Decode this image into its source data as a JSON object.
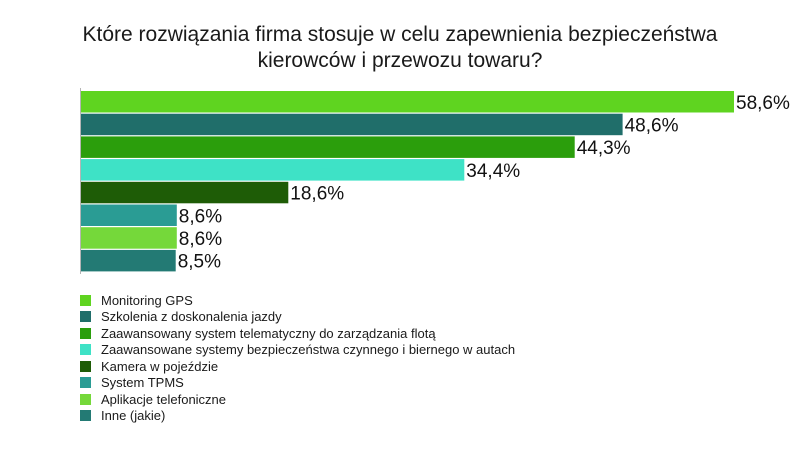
{
  "chart_data": {
    "type": "bar",
    "orientation": "horizontal",
    "title": [
      "Które rozwiązania firma stosuje w celu zapewnienia bezpieczeństwa",
      "kierowców i przewozu towaru?"
    ],
    "categories": [
      "Monitoring GPS",
      "Szkolenia z doskonalenia jazdy",
      "Zaawansowany system telematyczny do zarządzania flotą",
      "Zaawansowane systemy bezpieczeństwa czynnego i biernego w autach",
      "Kamera w pojeździe",
      "System TPMS",
      "Aplikacje telefoniczne",
      "Inne (jakie)"
    ],
    "values": [
      58.6,
      48.6,
      44.3,
      34.4,
      18.6,
      8.6,
      8.6,
      8.5
    ],
    "value_labels": [
      "58,6%",
      "48,6%",
      "44,3%",
      "34,4%",
      "18,6%",
      "8,6%",
      "8,6%",
      "8,5%"
    ],
    "colors": [
      "#5fd420",
      "#206e6a",
      "#2b9e0c",
      "#3ee2c6",
      "#1e5c06",
      "#2a9c94",
      "#75d83a",
      "#237a74"
    ],
    "xlim": [
      0,
      60
    ],
    "grid": false,
    "legend_position": "bottom-left"
  }
}
